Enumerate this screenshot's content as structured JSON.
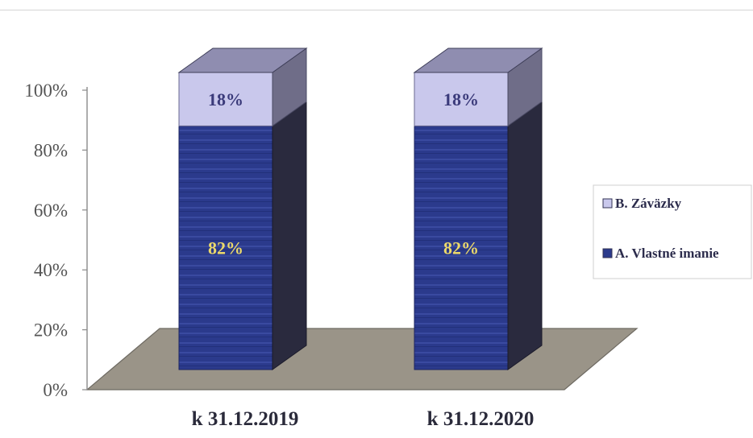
{
  "chart_data": {
    "type": "bar",
    "stacked": true,
    "percent_stacked": true,
    "three_d": true,
    "categories": [
      "k 31.12.2019",
      "k 31.12.2020"
    ],
    "series": [
      {
        "name": "A. Vlastné imanie",
        "values": [
          82,
          82
        ],
        "labels": [
          "82%",
          "82%"
        ],
        "color": "#2b3a8c"
      },
      {
        "name": "B. Záväzky",
        "values": [
          18,
          18
        ],
        "labels": [
          "18%",
          "18%"
        ],
        "color": "#c9c8ec"
      }
    ],
    "y_ticks": [
      "0%",
      "20%",
      "40%",
      "60%",
      "80%",
      "100%"
    ],
    "ylim": [
      0,
      100
    ],
    "legend_position": "right",
    "grid": false,
    "colors": {
      "floor": "#9a9488",
      "floor_edge": "#6e6a62",
      "side_dark": "#2a2a3e",
      "top_face": "#8f8db0",
      "top_side": "#6f6d88"
    }
  }
}
